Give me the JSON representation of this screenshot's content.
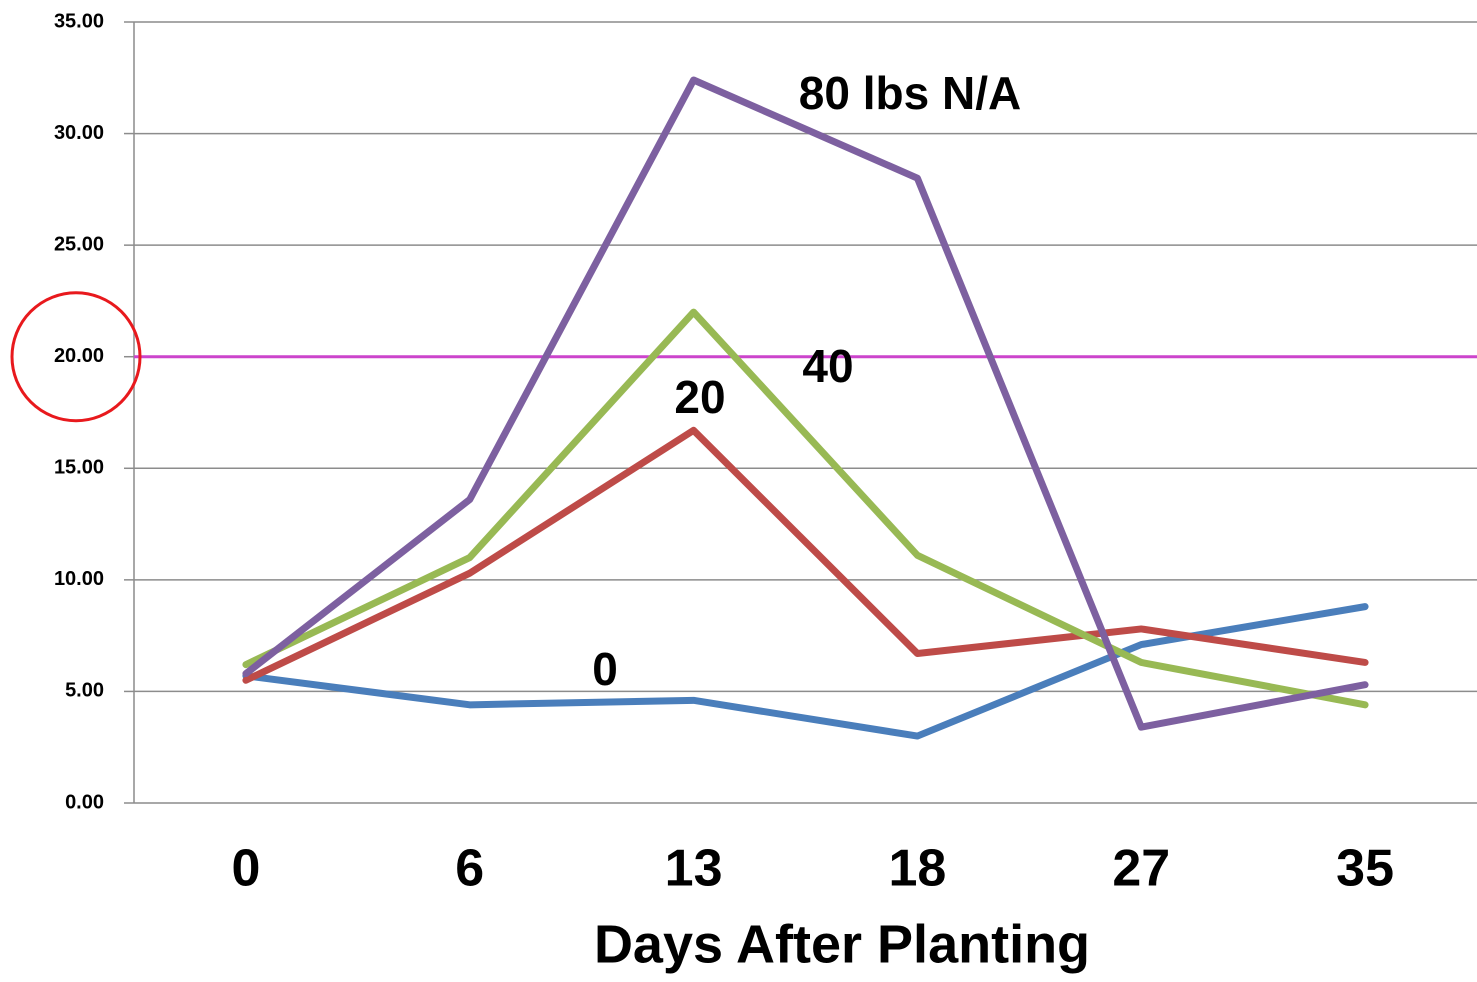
{
  "chart_data": {
    "type": "line",
    "xlabel": "Days After Planting",
    "categories": [
      "0",
      "6",
      "13",
      "18",
      "27",
      "35"
    ],
    "series": [
      {
        "name": "0",
        "color": "#4a7ebb",
        "values": [
          5.7,
          4.4,
          4.6,
          3.0,
          7.1,
          8.8
        ]
      },
      {
        "name": "20",
        "color": "#be4b48",
        "values": [
          5.5,
          10.3,
          16.7,
          6.7,
          7.8,
          6.3
        ]
      },
      {
        "name": "40",
        "color": "#98b954",
        "values": [
          6.2,
          11.0,
          22.0,
          11.1,
          6.3,
          4.4
        ]
      },
      {
        "name": "80 lbs N/A",
        "color": "#7d60a0",
        "values": [
          5.8,
          13.6,
          32.4,
          28.0,
          3.4,
          5.3
        ]
      }
    ],
    "reference_line": {
      "value": 20,
      "color": "#cc44cc"
    },
    "ylim": [
      0,
      35
    ],
    "yticks": [
      {
        "value": 0,
        "label": "0.00"
      },
      {
        "value": 5,
        "label": "5.00"
      },
      {
        "value": 10,
        "label": "10.00"
      },
      {
        "value": 15,
        "label": "15.00"
      },
      {
        "value": 20,
        "label": "20.00"
      },
      {
        "value": 25,
        "label": "25.00"
      },
      {
        "value": 30,
        "label": "30.00"
      },
      {
        "value": 35,
        "label": "35.00"
      }
    ],
    "grid": true
  }
}
